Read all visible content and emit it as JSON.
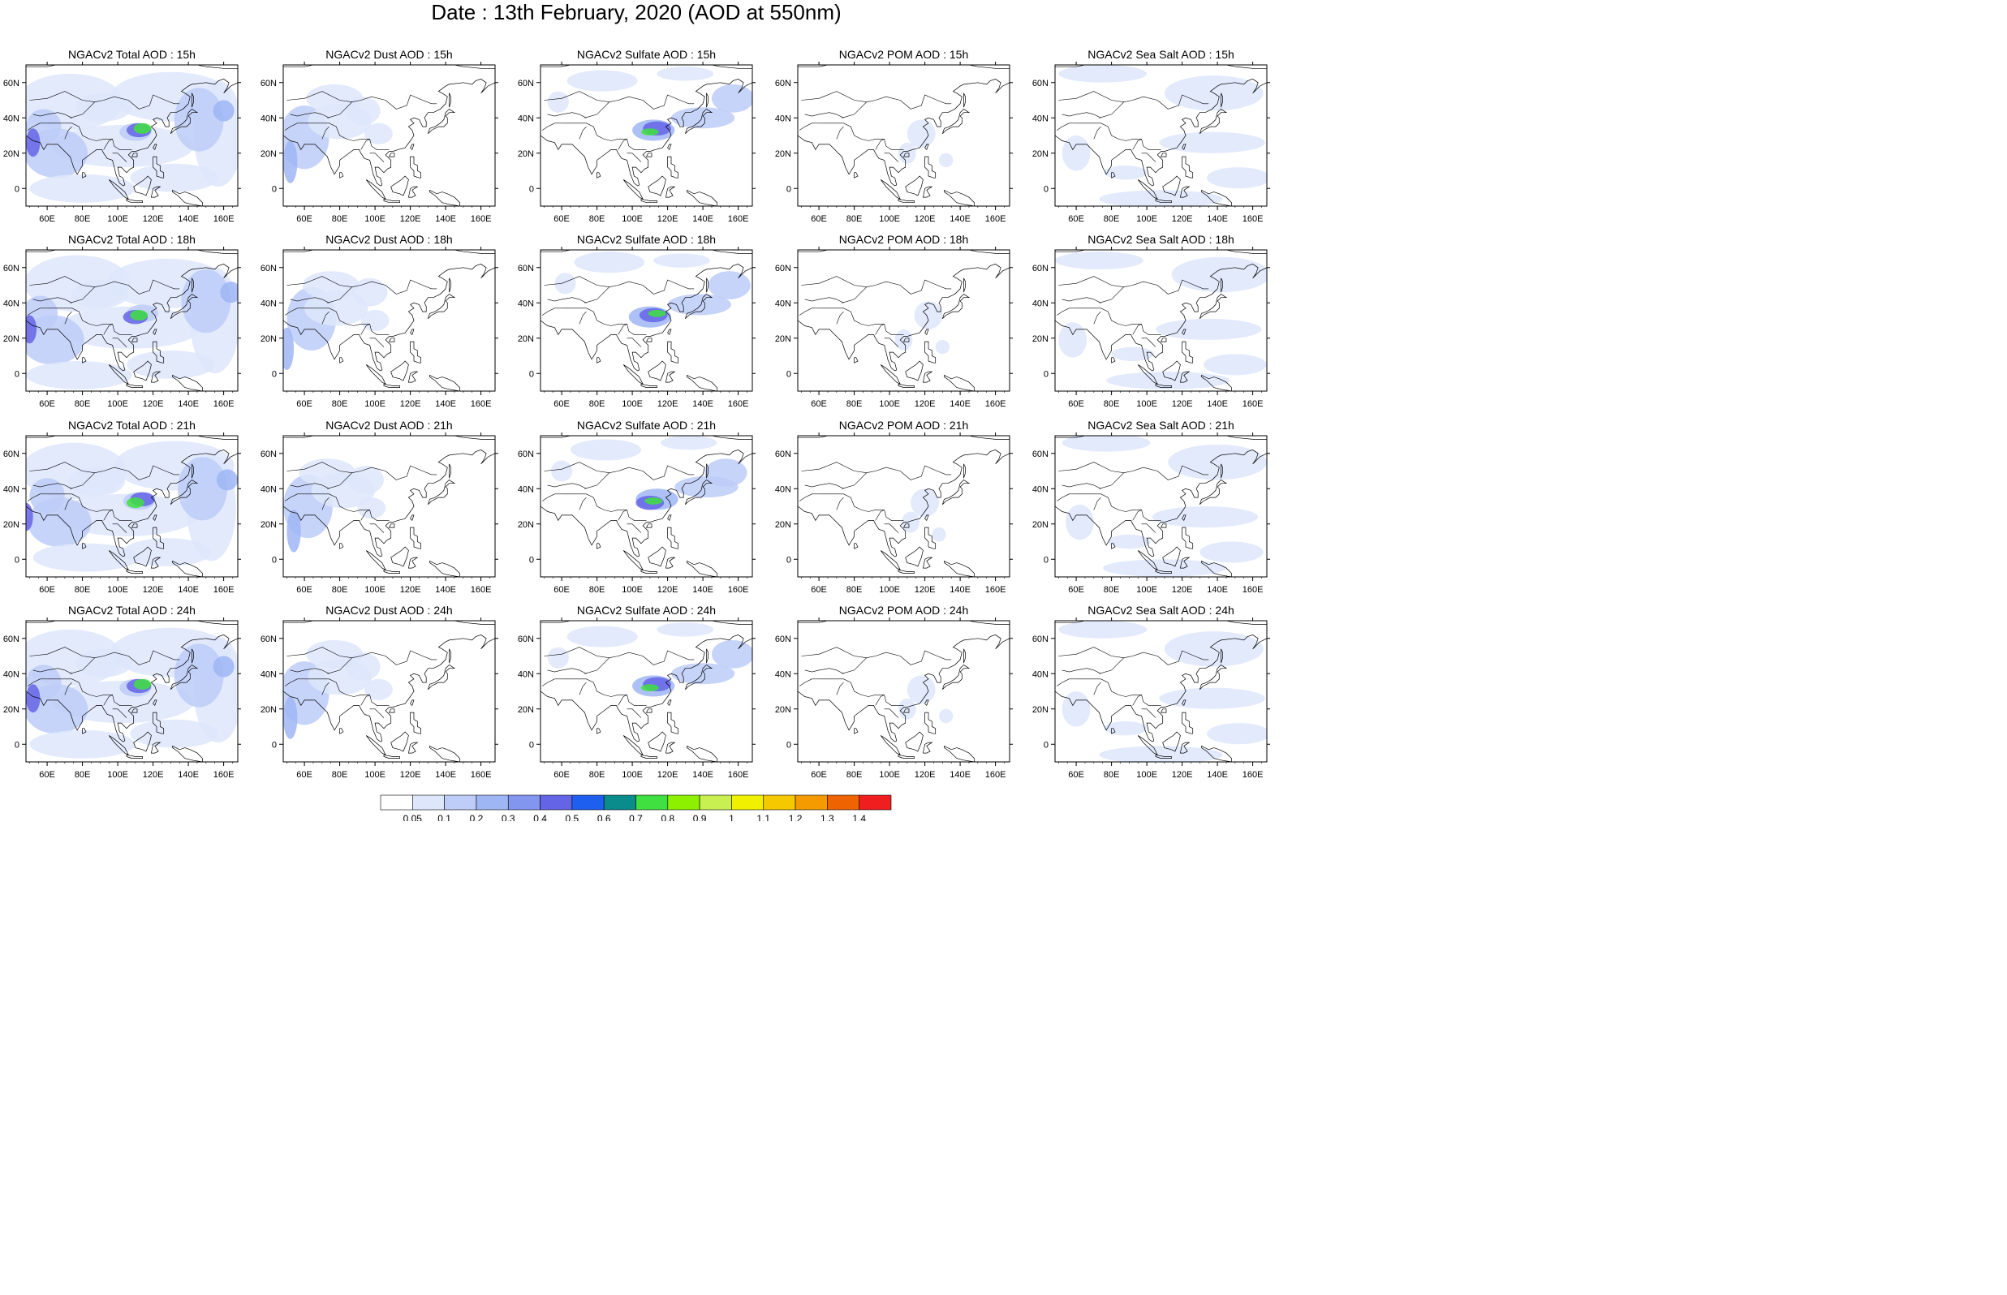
{
  "title": "Date : 13th February, 2020 (AOD at 550nm)",
  "species": [
    {
      "name": "Total",
      "cols": [
        {
          "h": "15h",
          "t": "NGACv2 Total AOD : 15h"
        },
        {
          "h": "18h",
          "t": "NGACv2 Total AOD : 18h"
        },
        {
          "h": "21h",
          "t": "NGACv2 Total AOD : 21h"
        },
        {
          "h": "24h",
          "t": "NGACv2 Total AOD : 24h"
        }
      ]
    },
    {
      "name": "Dust",
      "cols": [
        {
          "h": "15h",
          "t": "NGACv2 Dust AOD : 15h"
        },
        {
          "h": "18h",
          "t": "NGACv2 Dust AOD : 18h"
        },
        {
          "h": "21h",
          "t": "NGACv2 Dust AOD : 21h"
        },
        {
          "h": "24h",
          "t": "NGACv2 Dust AOD : 24h"
        }
      ]
    },
    {
      "name": "Sulfate",
      "cols": [
        {
          "h": "15h",
          "t": "NGACv2 Sulfate AOD : 15h"
        },
        {
          "h": "18h",
          "t": "NGACv2 Sulfate AOD : 18h"
        },
        {
          "h": "21h",
          "t": "NGACv2 Sulfate AOD : 21h"
        },
        {
          "h": "24h",
          "t": "NGACv2 Sulfate AOD : 24h"
        }
      ]
    },
    {
      "name": "POM",
      "cols": [
        {
          "h": "15h",
          "t": "NGACv2 POM AOD : 15h"
        },
        {
          "h": "18h",
          "t": "NGACv2 POM AOD : 18h"
        },
        {
          "h": "21h",
          "t": "NGACv2 POM AOD : 21h"
        },
        {
          "h": "24h",
          "t": "NGACv2 POM AOD : 24h"
        }
      ]
    },
    {
      "name": "Sea Salt",
      "cols": [
        {
          "h": "15h",
          "t": "NGACv2 Sea Salt AOD : 15h"
        },
        {
          "h": "18h",
          "t": "NGACv2 Sea Salt AOD : 18h"
        },
        {
          "h": "21h",
          "t": "NGACv2 Sea Salt AOD : 21h"
        },
        {
          "h": "24h",
          "t": "NGACv2 Sea Salt  AOD : 24h"
        }
      ]
    }
  ],
  "lon_ticks": [
    "60E",
    "80E",
    "100E",
    "120E",
    "140E",
    "160E"
  ],
  "lat_ticks": [
    "60N",
    "40N",
    "20N",
    "0"
  ],
  "colorbar": {
    "labels": [
      "0.05",
      "0.1",
      "0.2",
      "0.3",
      "0.4",
      "0.5",
      "0.6",
      "0.7",
      "0.8",
      "0.9",
      "1",
      "1.1",
      "1.2",
      "1.3",
      "1.4"
    ],
    "colors": [
      "#ffffff",
      "#dde6fb",
      "#bdcdf8",
      "#9fb6f5",
      "#8296f0",
      "#6464e6",
      "#1e5ff0",
      "#0a8c8c",
      "#40e040",
      "#8cf000",
      "#c8f050",
      "#f0f000",
      "#f5c800",
      "#f59b00",
      "#f06400",
      "#f01e1e"
    ]
  }
}
